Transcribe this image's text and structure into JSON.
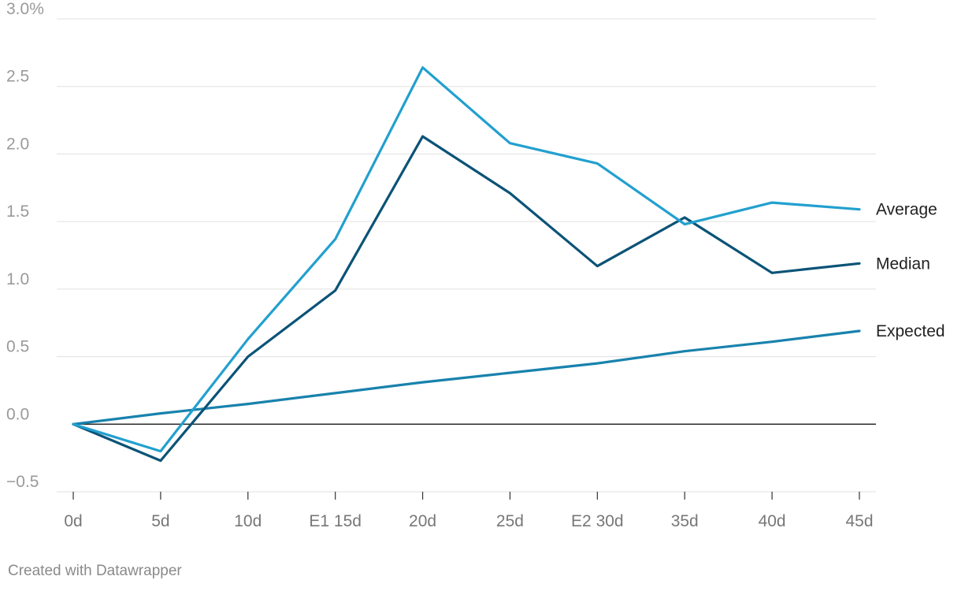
{
  "chart_data": {
    "type": "line",
    "title": "",
    "xlabel": "",
    "ylabel": "",
    "categories": [
      "0d",
      "5d",
      "10d",
      "E1 15d",
      "20d",
      "25d",
      "E2 30d",
      "35d",
      "40d",
      "45d"
    ],
    "ylim": [
      -0.5,
      3.0
    ],
    "yticks": [
      -0.5,
      0.0,
      0.5,
      1.0,
      1.5,
      2.0,
      2.5,
      3.0
    ],
    "ytick_labels": [
      "−0.5",
      "0.0",
      "0.5",
      "1.0",
      "1.5",
      "2.0",
      "2.5",
      "3.0%"
    ],
    "grid": true,
    "legend": "direct labels at right end of lines",
    "series": [
      {
        "name": "Average",
        "color": "#22a0cf",
        "values": [
          0.0,
          -0.2,
          0.63,
          1.37,
          2.64,
          2.08,
          1.93,
          1.48,
          1.64,
          1.59
        ]
      },
      {
        "name": "Median",
        "color": "#0b5377",
        "values": [
          0.0,
          -0.27,
          0.5,
          0.99,
          2.13,
          1.71,
          1.17,
          1.53,
          1.12,
          1.19
        ]
      },
      {
        "name": "Expected",
        "color": "#1882ad",
        "values": [
          0.0,
          0.08,
          0.15,
          0.23,
          0.31,
          0.38,
          0.45,
          0.54,
          0.61,
          0.69
        ]
      }
    ]
  },
  "footer": {
    "credit": "Created with Datawrapper"
  }
}
